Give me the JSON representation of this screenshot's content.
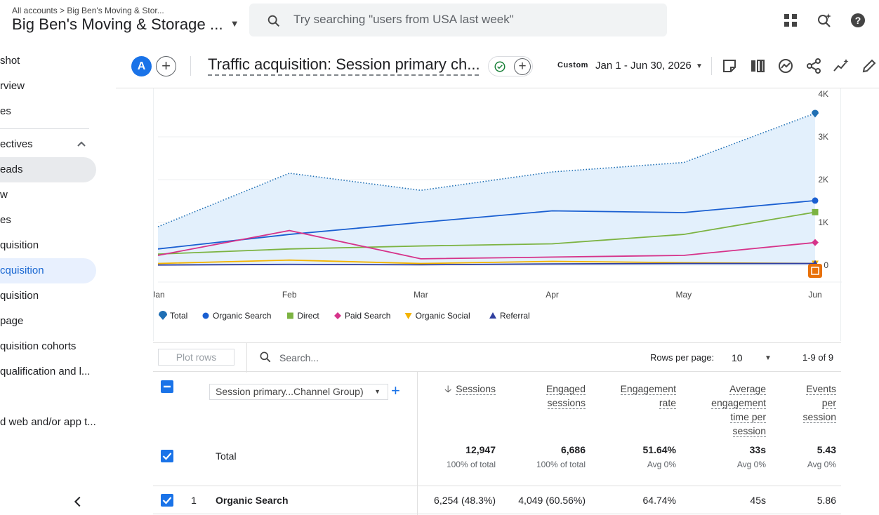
{
  "topbar": {
    "breadcrumb": "All accounts > Big Ben's Moving & Stor...",
    "account_name": "Big Ben's Moving & Storage ...",
    "search_placeholder": "Try searching \"users from USA last week\""
  },
  "sidebar": {
    "items": [
      {
        "label": "shot"
      },
      {
        "label": "rview"
      },
      {
        "label": "es"
      },
      {
        "label": "ectives"
      },
      {
        "label": "eads"
      },
      {
        "label": "w"
      },
      {
        "label": "es"
      },
      {
        "label": "quisition"
      },
      {
        "label": "cquisition"
      },
      {
        "label": "quisition"
      },
      {
        "label": "page"
      },
      {
        "label": "quisition cohorts"
      },
      {
        "label": "qualification and l..."
      },
      {
        "label": "d web and/or app t..."
      }
    ]
  },
  "header": {
    "avatar_letter": "A",
    "title": "Traffic acquisition: Session primary ch...",
    "date_preset": "Custom",
    "date_range": "Jan 1 - Jun 30, 2026"
  },
  "chart_data": {
    "type": "line",
    "x": [
      "Jan",
      "Feb",
      "Mar",
      "Apr",
      "May",
      "Jun"
    ],
    "y_ticks": [
      "4K",
      "3K",
      "2K",
      "1K",
      "0"
    ],
    "ylim": [
      0,
      4000
    ],
    "series": [
      {
        "name": "Total",
        "color": "#1f6fb4",
        "marker": "pin",
        "values": [
          900,
          2150,
          1750,
          2180,
          2400,
          3550
        ]
      },
      {
        "name": "Organic Search",
        "color": "#1a5fd1",
        "marker": "circle",
        "values": [
          380,
          720,
          1000,
          1270,
          1230,
          1510
        ]
      },
      {
        "name": "Direct",
        "color": "#7cb342",
        "marker": "square",
        "values": [
          260,
          380,
          450,
          500,
          720,
          1240
        ]
      },
      {
        "name": "Paid Search",
        "color": "#d6338a",
        "marker": "diamond",
        "values": [
          230,
          810,
          150,
          190,
          230,
          530
        ]
      },
      {
        "name": "Organic Social",
        "color": "#f4b400",
        "marker": "triangle-down",
        "values": [
          40,
          120,
          40,
          90,
          60,
          40
        ]
      },
      {
        "name": "Referral",
        "color": "#303f9f",
        "marker": "triangle-up",
        "values": [
          5,
          20,
          10,
          30,
          40,
          40
        ]
      }
    ],
    "legend_position": "bottom-left"
  },
  "table": {
    "plot_rows_label": "Plot rows",
    "search_placeholder": "Search...",
    "rows_per_page_label": "Rows per page:",
    "rows_per_page_value": "10",
    "pager_text": "1-9 of 9",
    "dimension_label": "Session primary...Channel Group)",
    "columns": [
      {
        "label_lines": [
          "Sessions"
        ]
      },
      {
        "label_lines": [
          "Engaged",
          "sessions"
        ]
      },
      {
        "label_lines": [
          "Engagement",
          "rate"
        ]
      },
      {
        "label_lines": [
          "Average",
          "engagement",
          "time per",
          "session"
        ]
      },
      {
        "label_lines": [
          "Events",
          "per",
          "session"
        ]
      }
    ],
    "total": {
      "label": "Total",
      "values": [
        "12,947",
        "6,686",
        "51.64%",
        "33s",
        "5.43"
      ],
      "subs": [
        "100% of total",
        "100% of total",
        "Avg 0%",
        "Avg 0%",
        "Avg 0%"
      ]
    },
    "rows": [
      {
        "index": "1",
        "name": "Organic Search",
        "values": [
          "6,254 (48.3%)",
          "4,049 (60.56%)",
          "64.74%",
          "45s",
          "5.86"
        ]
      }
    ]
  }
}
